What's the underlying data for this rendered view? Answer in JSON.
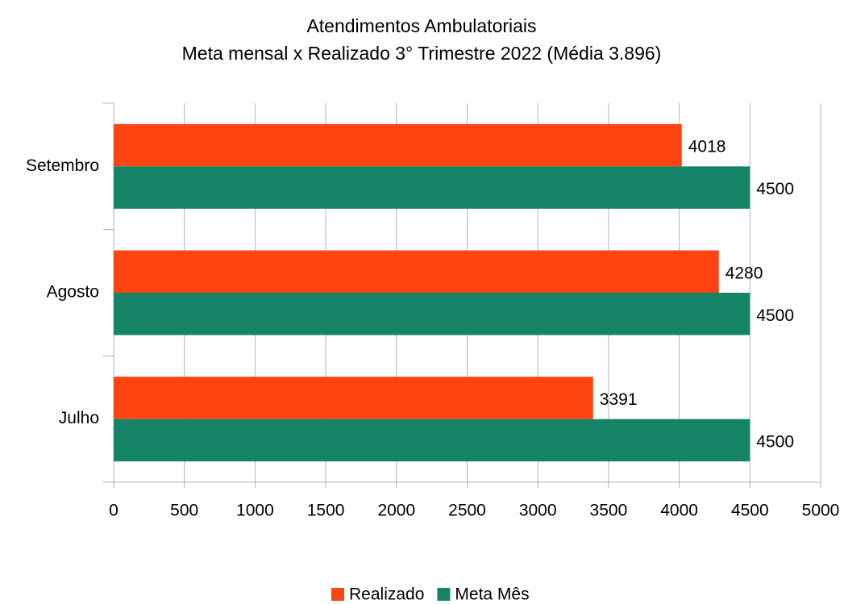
{
  "chart_data": {
    "type": "barh",
    "title": "Atendimentos Ambulatoriais",
    "subtitle": "Meta mensal x Realizado 3° Trimestre 2022 (Média 3.896)",
    "categories": [
      "Julho",
      "Agosto",
      "Setembro"
    ],
    "series": [
      {
        "name": "Realizado",
        "color": "#ff4411",
        "values": [
          3391,
          4280,
          4018
        ]
      },
      {
        "name": "Meta Mês",
        "color": "#158466",
        "values": [
          4500,
          4500,
          4500
        ]
      }
    ],
    "xlim": [
      0,
      5000
    ],
    "xticks": [
      0,
      500,
      1000,
      1500,
      2000,
      2500,
      3000,
      3500,
      4000,
      4500,
      5000
    ],
    "grid": true,
    "legend": "bottom"
  }
}
